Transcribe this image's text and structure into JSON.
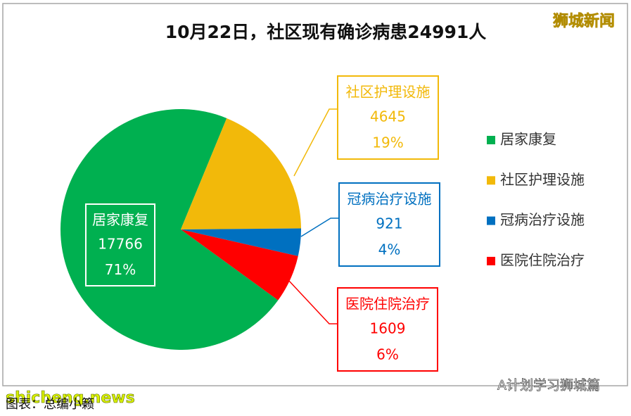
{
  "chart_data": {
    "type": "pie",
    "title": "10月22日，社区现有确诊病患24991人",
    "categories": [
      "居家康复",
      "社区护理设施",
      "冠病治疗设施",
      "医院住院治疗"
    ],
    "values": [
      17766,
      4645,
      921,
      1609
    ],
    "percent_labels": [
      "71%",
      "19%",
      "4%",
      "6%"
    ],
    "colors": [
      "#00b050",
      "#f2b90a",
      "#0070c0",
      "#ff0000"
    ],
    "legend": "right"
  },
  "watermarks": {
    "top_right": "狮城新闻",
    "bottom_left": "shicheng.news",
    "bottom_right": "A计划学习狮城篇"
  },
  "caption": "图表：总编小籁"
}
